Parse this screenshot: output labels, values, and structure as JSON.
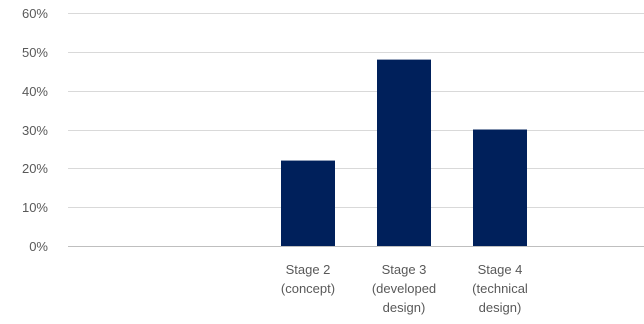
{
  "chart_data": {
    "type": "bar",
    "title": "",
    "xlabel": "",
    "ylabel": "",
    "categories": [
      [
        "Stage 2",
        "(concept)"
      ],
      [
        "Stage 3",
        "(developed",
        "design)"
      ],
      [
        "Stage 4",
        "(technical",
        "design)"
      ]
    ],
    "category_slots": 6,
    "category_offset": 2,
    "values": [
      0.22,
      0.48,
      0.3
    ],
    "ylim": [
      0,
      0.6
    ],
    "yticks": [
      0,
      0.1,
      0.2,
      0.3,
      0.4,
      0.5,
      0.6
    ],
    "ytick_labels": [
      "0%",
      "10%",
      "20%",
      "30%",
      "40%",
      "50%",
      "60%"
    ],
    "grid": true,
    "legend": "none",
    "colors": {
      "bar": "#00205b",
      "grid": "#d9d9d9",
      "axis": "#bfbfbf",
      "text": "#595959"
    }
  }
}
